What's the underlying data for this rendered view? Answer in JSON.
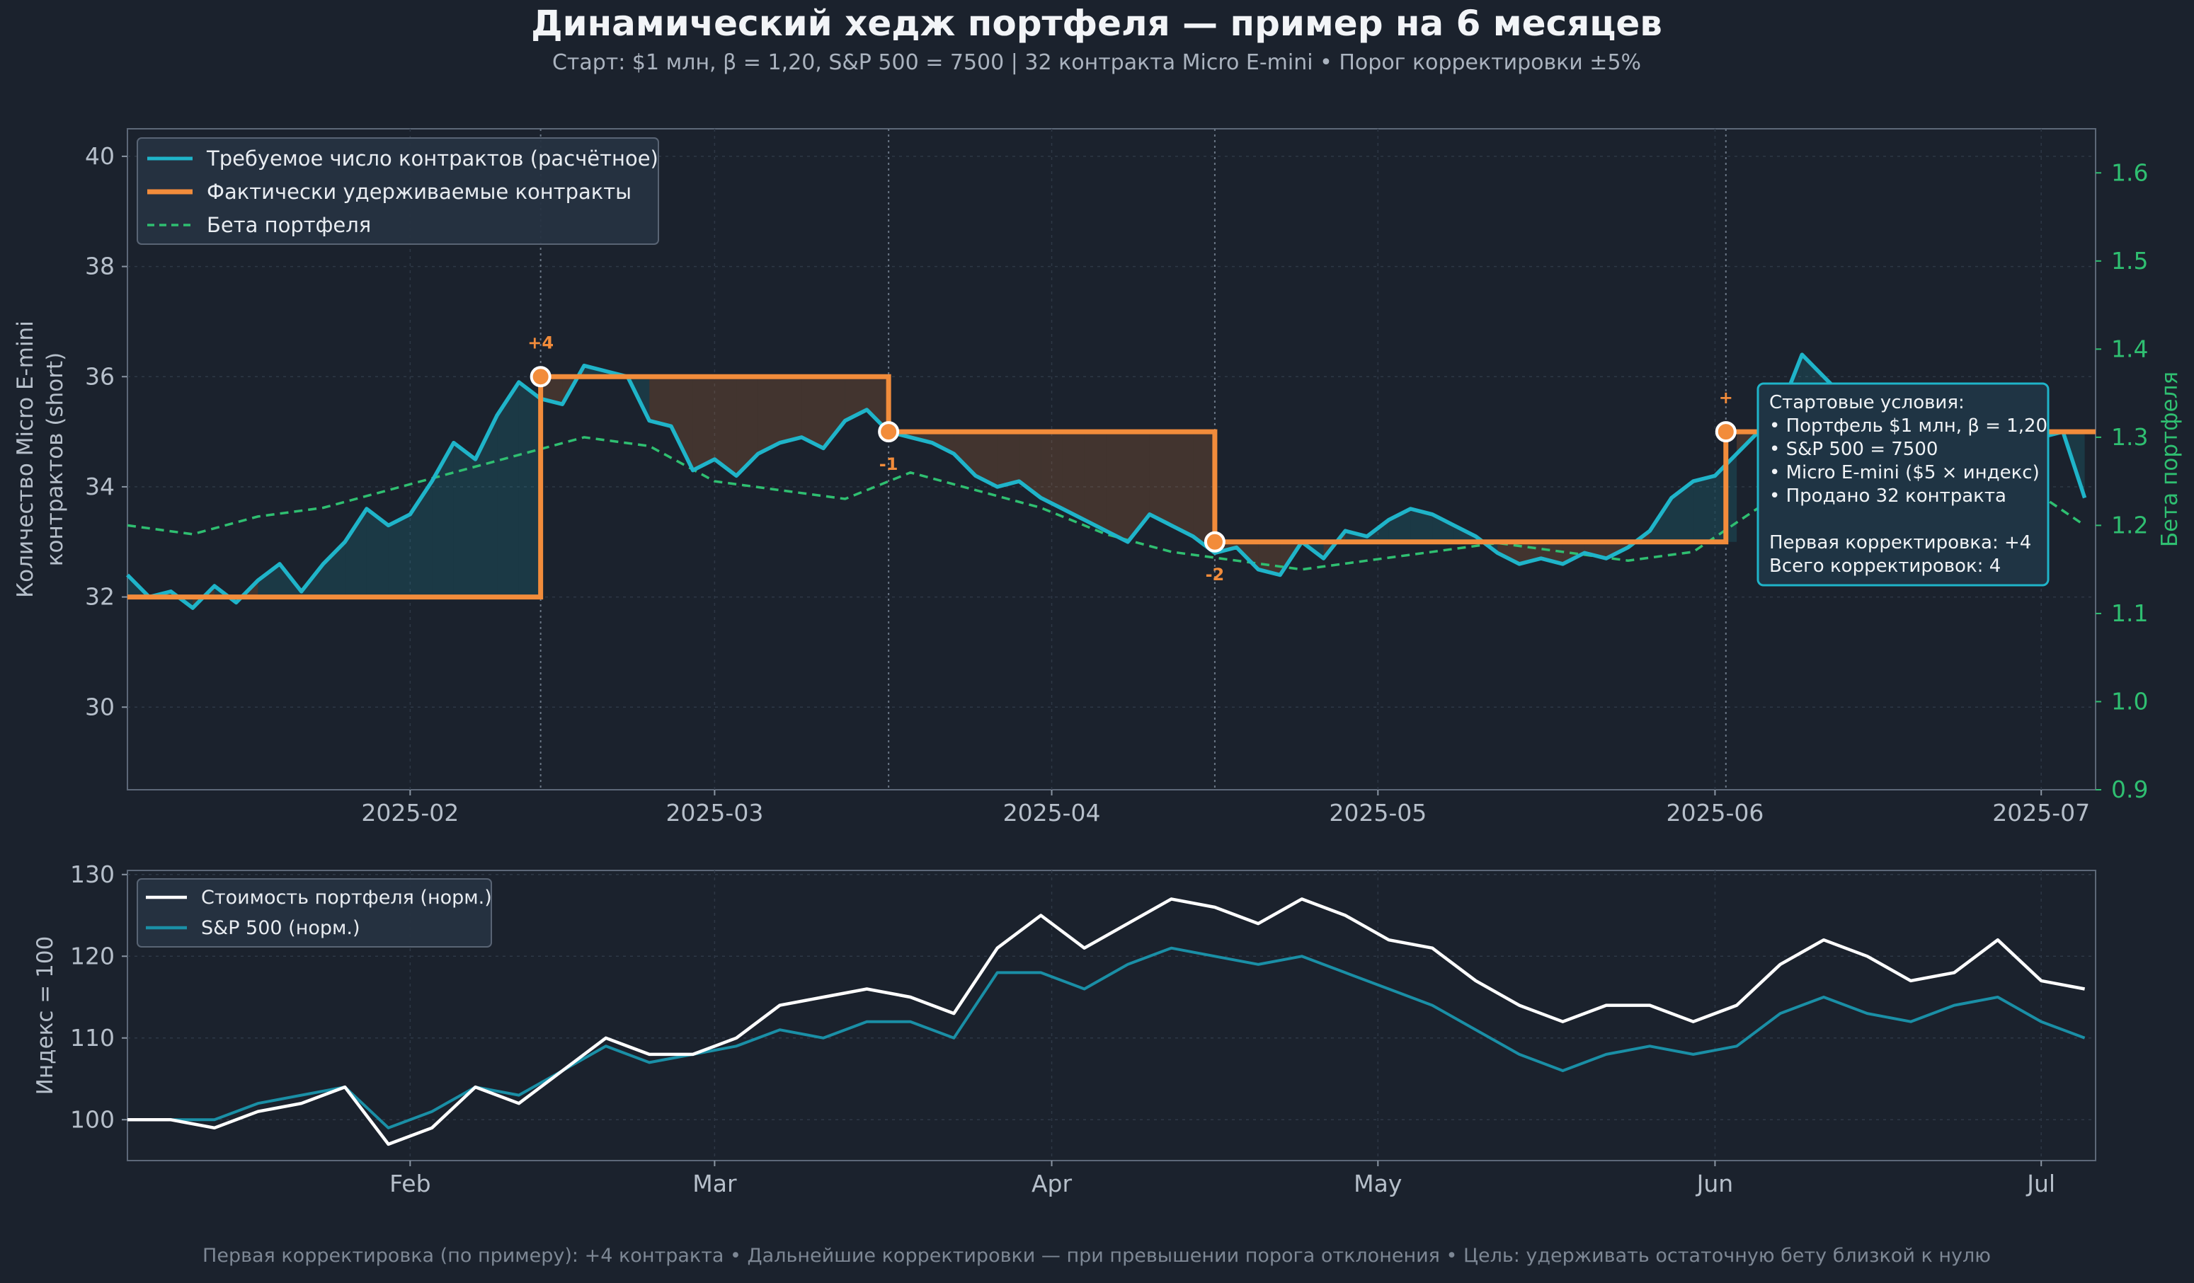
{
  "title": "Динамический хедж портфеля — пример на 6 месяцев",
  "subtitle": "Старт: $1 млн, β = 1,20, S&P 500 = 7500  |  32 контракта Micro E-mini  •  Порог корректировки ±5%",
  "footer": "Первая корректировка (по примеру): +4 контракта  •  Дальнейшие корректировки — при превышении порога отклонения  •  Цель: удерживать остаточную бету близкой к нулю",
  "colors": {
    "background": "#1b222d",
    "required": "#1fb4c9",
    "actual": "#f28c3b",
    "beta": "#2fbf71",
    "portfolio": "#ffffff",
    "sp500": "#1a8fa6"
  },
  "chart_data": [
    {
      "type": "line",
      "panel": "top",
      "ylabel": "Количество Micro E-mini\nконтрактов (short)",
      "y2label": "Бета портфеля",
      "ylim": [
        28.5,
        40.5
      ],
      "y2lim": [
        0.9,
        1.65
      ],
      "xlim": [
        "2025-01-06",
        "2025-07-06"
      ],
      "yticks": [
        "30",
        "32",
        "34",
        "36",
        "38",
        "40"
      ],
      "y2ticks": [
        "0.9",
        "1.0",
        "1.1",
        "1.2",
        "1.3",
        "1.4",
        "1.5",
        "1.6"
      ],
      "xticks": [
        {
          "date": "2025-02-01",
          "label": "2025-02"
        },
        {
          "date": "2025-03-01",
          "label": "2025-03"
        },
        {
          "date": "2025-04-01",
          "label": "2025-04"
        },
        {
          "date": "2025-05-01",
          "label": "2025-05"
        },
        {
          "date": "2025-06-01",
          "label": "2025-06"
        },
        {
          "date": "2025-07-01",
          "label": "2025-07"
        }
      ],
      "grid": true,
      "legend_position": "top-left",
      "series": [
        {
          "name": "Требуемое число контрактов (расчётное)",
          "axis": "left",
          "x": [
            "2025-01-06",
            "2025-01-08",
            "2025-01-10",
            "2025-01-12",
            "2025-01-14",
            "2025-01-16",
            "2025-01-18",
            "2025-01-20",
            "2025-01-22",
            "2025-01-24",
            "2025-01-26",
            "2025-01-28",
            "2025-01-30",
            "2025-02-01",
            "2025-02-03",
            "2025-02-05",
            "2025-02-07",
            "2025-02-09",
            "2025-02-11",
            "2025-02-13",
            "2025-02-15",
            "2025-02-17",
            "2025-02-19",
            "2025-02-21",
            "2025-02-23",
            "2025-02-25",
            "2025-02-27",
            "2025-03-01",
            "2025-03-03",
            "2025-03-05",
            "2025-03-07",
            "2025-03-09",
            "2025-03-11",
            "2025-03-13",
            "2025-03-15",
            "2025-03-17",
            "2025-03-19",
            "2025-03-21",
            "2025-03-23",
            "2025-03-25",
            "2025-03-27",
            "2025-03-29",
            "2025-03-31",
            "2025-04-02",
            "2025-04-04",
            "2025-04-06",
            "2025-04-08",
            "2025-04-10",
            "2025-04-12",
            "2025-04-14",
            "2025-04-16",
            "2025-04-18",
            "2025-04-20",
            "2025-04-22",
            "2025-04-24",
            "2025-04-26",
            "2025-04-28",
            "2025-04-30",
            "2025-05-02",
            "2025-05-04",
            "2025-05-06",
            "2025-05-08",
            "2025-05-10",
            "2025-05-12",
            "2025-05-14",
            "2025-05-16",
            "2025-05-18",
            "2025-05-20",
            "2025-05-22",
            "2025-05-24",
            "2025-05-26",
            "2025-05-28",
            "2025-05-30",
            "2025-06-01",
            "2025-06-03",
            "2025-06-05",
            "2025-06-07",
            "2025-06-09",
            "2025-06-11",
            "2025-06-13",
            "2025-06-15",
            "2025-06-17",
            "2025-06-19",
            "2025-06-21",
            "2025-06-23",
            "2025-06-25",
            "2025-06-27",
            "2025-06-29",
            "2025-07-01",
            "2025-07-03",
            "2025-07-05"
          ],
          "y": [
            32.4,
            32.0,
            32.1,
            31.8,
            32.2,
            31.9,
            32.3,
            32.6,
            32.1,
            32.6,
            33.0,
            33.6,
            33.3,
            33.5,
            34.1,
            34.8,
            34.5,
            35.3,
            35.9,
            35.6,
            35.5,
            36.2,
            36.1,
            36.0,
            35.2,
            35.1,
            34.3,
            34.5,
            34.2,
            34.6,
            34.8,
            34.9,
            34.7,
            35.2,
            35.4,
            35.0,
            34.9,
            34.8,
            34.6,
            34.2,
            34.0,
            34.1,
            33.8,
            33.6,
            33.4,
            33.2,
            33.0,
            33.5,
            33.3,
            33.1,
            32.8,
            32.9,
            32.5,
            32.4,
            33.0,
            32.7,
            33.2,
            33.1,
            33.4,
            33.6,
            33.5,
            33.3,
            33.1,
            32.8,
            32.6,
            32.7,
            32.6,
            32.8,
            32.7,
            32.9,
            33.2,
            33.8,
            34.1,
            34.2,
            34.6,
            35.0,
            35.4,
            36.4,
            36.0,
            35.6,
            35.5,
            35.4,
            35.2,
            35.1,
            35.3,
            35.0,
            35.4,
            35.1,
            34.9,
            35.0,
            33.8
          ]
        },
        {
          "name": "Фактически удерживаемые контракты",
          "axis": "left",
          "step": true,
          "x": [
            "2025-01-06",
            "2025-02-13",
            "2025-03-17",
            "2025-04-16",
            "2025-06-02",
            "2025-07-06"
          ],
          "y": [
            32,
            36,
            35,
            33,
            35,
            35
          ]
        },
        {
          "name": "Бета портфеля",
          "axis": "right",
          "x": [
            "2025-01-06",
            "2025-01-12",
            "2025-01-18",
            "2025-01-24",
            "2025-01-30",
            "2025-02-05",
            "2025-02-11",
            "2025-02-17",
            "2025-02-23",
            "2025-03-01",
            "2025-03-07",
            "2025-03-13",
            "2025-03-19",
            "2025-03-25",
            "2025-03-31",
            "2025-04-06",
            "2025-04-12",
            "2025-04-18",
            "2025-04-24",
            "2025-04-30",
            "2025-05-06",
            "2025-05-12",
            "2025-05-18",
            "2025-05-24",
            "2025-05-30",
            "2025-06-05",
            "2025-06-11",
            "2025-06-17",
            "2025-06-23",
            "2025-06-29",
            "2025-07-05"
          ],
          "y": [
            1.2,
            1.19,
            1.21,
            1.22,
            1.24,
            1.26,
            1.28,
            1.3,
            1.29,
            1.25,
            1.24,
            1.23,
            1.26,
            1.24,
            1.22,
            1.19,
            1.17,
            1.16,
            1.15,
            1.16,
            1.17,
            1.18,
            1.17,
            1.16,
            1.17,
            1.22,
            1.25,
            1.27,
            1.26,
            1.25,
            1.2
          ]
        }
      ],
      "adjustments": [
        {
          "date": "2025-02-13",
          "contracts": 36,
          "label": "+4"
        },
        {
          "date": "2025-03-17",
          "contracts": 35,
          "label": "-1"
        },
        {
          "date": "2025-04-16",
          "contracts": 33,
          "label": "-2"
        },
        {
          "date": "2025-06-02",
          "contracts": 35,
          "label": "+"
        }
      ],
      "info_box": [
        "Стартовые условия:",
        "• Портфель $1 млн, β = 1,20",
        "• S&P 500 = 7500",
        "• Micro E-mini ($5 × индекс)",
        "• Продано 32 контракта",
        "",
        "Первая корректировка: +4",
        "Всего корректировок: 4"
      ]
    },
    {
      "type": "line",
      "panel": "bottom",
      "ylabel": "Индекс = 100",
      "ylim": [
        95,
        130.5
      ],
      "xlim": [
        "2025-01-06",
        "2025-07-06"
      ],
      "yticks": [
        "100",
        "110",
        "120",
        "130"
      ],
      "xticks": [
        {
          "date": "2025-02-01",
          "label": "Feb"
        },
        {
          "date": "2025-03-01",
          "label": "Mar"
        },
        {
          "date": "2025-04-01",
          "label": "Apr"
        },
        {
          "date": "2025-05-01",
          "label": "May"
        },
        {
          "date": "2025-06-01",
          "label": "Jun"
        },
        {
          "date": "2025-07-01",
          "label": "Jul"
        }
      ],
      "grid": true,
      "legend_position": "top-left",
      "series": [
        {
          "name": "Стоимость портфеля (норм.)",
          "x": [
            "2025-01-06",
            "2025-01-10",
            "2025-01-14",
            "2025-01-18",
            "2025-01-22",
            "2025-01-26",
            "2025-01-30",
            "2025-02-03",
            "2025-02-07",
            "2025-02-11",
            "2025-02-15",
            "2025-02-19",
            "2025-02-23",
            "2025-02-27",
            "2025-03-03",
            "2025-03-07",
            "2025-03-11",
            "2025-03-15",
            "2025-03-19",
            "2025-03-23",
            "2025-03-27",
            "2025-03-31",
            "2025-04-04",
            "2025-04-08",
            "2025-04-12",
            "2025-04-16",
            "2025-04-20",
            "2025-04-24",
            "2025-04-28",
            "2025-05-02",
            "2025-05-06",
            "2025-05-10",
            "2025-05-14",
            "2025-05-18",
            "2025-05-22",
            "2025-05-26",
            "2025-05-30",
            "2025-06-03",
            "2025-06-07",
            "2025-06-11",
            "2025-06-15",
            "2025-06-19",
            "2025-06-23",
            "2025-06-27",
            "2025-07-01",
            "2025-07-05"
          ],
          "y": [
            100,
            100,
            99,
            101,
            102,
            104,
            97,
            99,
            104,
            102,
            106,
            110,
            108,
            108,
            110,
            114,
            115,
            116,
            115,
            113,
            121,
            125,
            121,
            124,
            127,
            126,
            124,
            127,
            125,
            122,
            121,
            117,
            114,
            112,
            114,
            114,
            112,
            114,
            119,
            122,
            120,
            117,
            118,
            122,
            117,
            116
          ]
        },
        {
          "name": "S&P 500 (норм.)",
          "x": [
            "2025-01-06",
            "2025-01-10",
            "2025-01-14",
            "2025-01-18",
            "2025-01-22",
            "2025-01-26",
            "2025-01-30",
            "2025-02-03",
            "2025-02-07",
            "2025-02-11",
            "2025-02-15",
            "2025-02-19",
            "2025-02-23",
            "2025-02-27",
            "2025-03-03",
            "2025-03-07",
            "2025-03-11",
            "2025-03-15",
            "2025-03-19",
            "2025-03-23",
            "2025-03-27",
            "2025-03-31",
            "2025-04-04",
            "2025-04-08",
            "2025-04-12",
            "2025-04-16",
            "2025-04-20",
            "2025-04-24",
            "2025-04-28",
            "2025-05-02",
            "2025-05-06",
            "2025-05-10",
            "2025-05-14",
            "2025-05-18",
            "2025-05-22",
            "2025-05-26",
            "2025-05-30",
            "2025-06-03",
            "2025-06-07",
            "2025-06-11",
            "2025-06-15",
            "2025-06-19",
            "2025-06-23",
            "2025-06-27",
            "2025-07-01",
            "2025-07-05"
          ],
          "y": [
            100,
            100,
            100,
            102,
            103,
            104,
            99,
            101,
            104,
            103,
            106,
            109,
            107,
            108,
            109,
            111,
            110,
            112,
            112,
            110,
            118,
            118,
            116,
            119,
            121,
            120,
            119,
            120,
            118,
            116,
            114,
            111,
            108,
            106,
            108,
            109,
            108,
            109,
            113,
            115,
            113,
            112,
            114,
            115,
            112,
            110
          ]
        }
      ]
    }
  ]
}
